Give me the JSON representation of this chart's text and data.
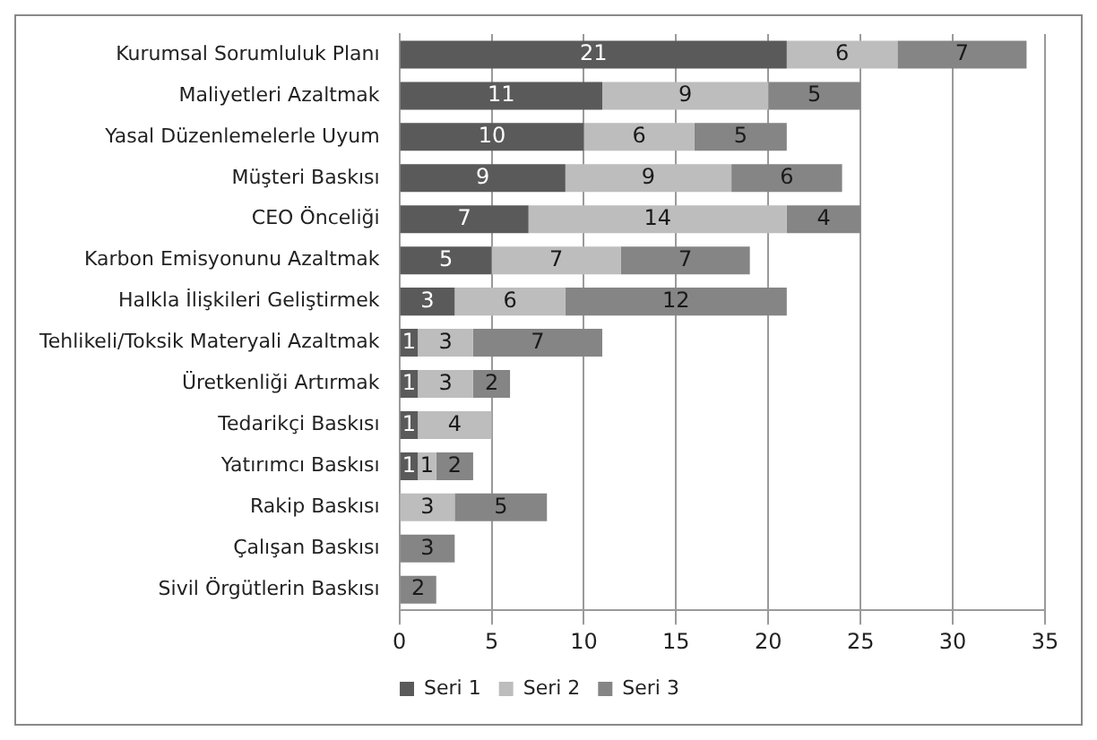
{
  "chart_data": {
    "type": "bar",
    "orientation": "horizontal",
    "stacked": true,
    "categories": [
      "Kurumsal Sorumluluk Planı",
      "Maliyetleri Azaltmak",
      "Yasal Düzenlemelerle Uyum",
      "Müşteri Baskısı",
      "CEO Önceliği",
      "Karbon Emisyonunu Azaltmak",
      "Halkla İlişkileri Geliştirmek",
      "Tehlikeli/Toksik Materyali Azaltmak",
      "Üretkenliği Artırmak",
      "Tedarikçi Baskısı",
      "Yatırımcı Baskısı",
      "Rakip Baskısı",
      "Çalışan Baskısı",
      "Sivil Örgütlerin Baskısı"
    ],
    "series": [
      {
        "name": "Seri 1",
        "color": "#5a5a5a",
        "values": [
          21,
          11,
          10,
          9,
          7,
          5,
          3,
          1,
          1,
          1,
          1,
          null,
          null,
          null
        ]
      },
      {
        "name": "Seri 2",
        "color": "#bdbdbd",
        "values": [
          6,
          9,
          6,
          9,
          14,
          7,
          6,
          3,
          3,
          4,
          1,
          3,
          null,
          null
        ]
      },
      {
        "name": "Seri 3",
        "color": "#858585",
        "values": [
          7,
          5,
          5,
          6,
          4,
          7,
          12,
          7,
          2,
          null,
          2,
          5,
          3,
          2
        ]
      }
    ],
    "xlim": [
      0,
      35
    ],
    "xticks": [
      0,
      5,
      10,
      15,
      20,
      25,
      30,
      35
    ],
    "grid": "x",
    "legend": "bottom",
    "data_labels": true
  }
}
